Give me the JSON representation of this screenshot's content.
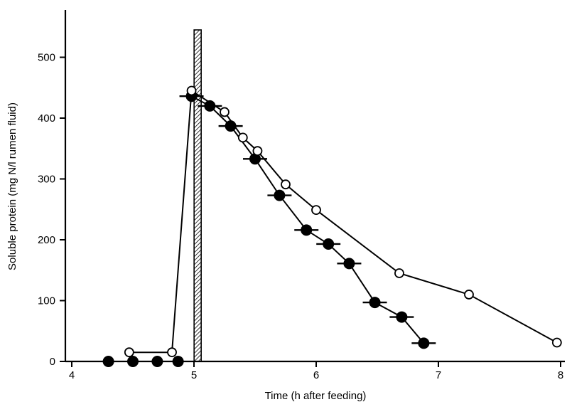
{
  "chart_data": {
    "type": "scatter",
    "title": "",
    "xlabel": "Time (h after feeding)",
    "ylabel": "Soluble protein (mg N/l rumen fluid)",
    "xlim": [
      3.95,
      8.05
    ],
    "ylim": [
      0,
      560
    ],
    "xticks": [
      4,
      5,
      6,
      7,
      8
    ],
    "yticks": [
      0,
      100,
      200,
      300,
      400,
      500
    ],
    "grid": false,
    "dose_bar": {
      "x": 5.03,
      "y_top": 545
    },
    "series": [
      {
        "marker": "filled-circle",
        "connect_from_index": 4,
        "points": [
          {
            "x": 4.3,
            "y": 0
          },
          {
            "x": 4.5,
            "y": 0
          },
          {
            "x": 4.7,
            "y": 0
          },
          {
            "x": 4.87,
            "y": 0
          },
          {
            "x": 4.98,
            "y": 436
          },
          {
            "x": 5.13,
            "y": 420
          },
          {
            "x": 5.3,
            "y": 387
          },
          {
            "x": 5.5,
            "y": 333
          },
          {
            "x": 5.7,
            "y": 273
          },
          {
            "x": 5.92,
            "y": 216
          },
          {
            "x": 6.1,
            "y": 193
          },
          {
            "x": 6.27,
            "y": 161
          },
          {
            "x": 6.48,
            "y": 97
          },
          {
            "x": 6.7,
            "y": 73
          },
          {
            "x": 6.88,
            "y": 30
          }
        ]
      },
      {
        "marker": "open-circle",
        "connect_from_index": 0,
        "points": [
          {
            "x": 4.47,
            "y": 15
          },
          {
            "x": 4.82,
            "y": 15
          },
          {
            "x": 4.98,
            "y": 445
          },
          {
            "x": 5.25,
            "y": 410
          },
          {
            "x": 5.4,
            "y": 368
          },
          {
            "x": 5.52,
            "y": 346
          },
          {
            "x": 5.75,
            "y": 291
          },
          {
            "x": 6.0,
            "y": 249
          },
          {
            "x": 6.68,
            "y": 145
          },
          {
            "x": 7.25,
            "y": 110
          },
          {
            "x": 7.97,
            "y": 31
          }
        ]
      }
    ]
  }
}
